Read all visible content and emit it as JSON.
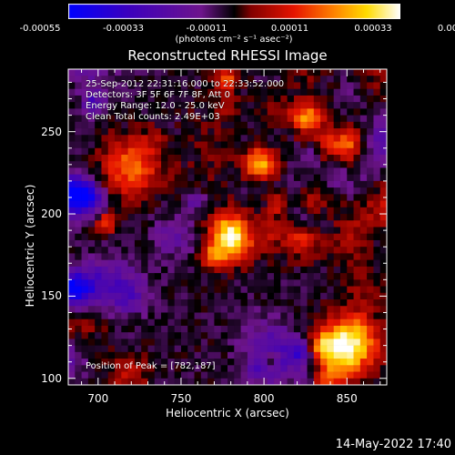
{
  "colorbar": {
    "labels": [
      "-0.00055",
      "-0.00033",
      "-0.00011",
      "0.00011",
      "0.00033",
      "0.00055"
    ],
    "units": "(photons cm⁻² s⁻¹ asec⁻²)",
    "range": [
      -0.00055,
      0.00055
    ]
  },
  "info": {
    "time_range": "25-Sep-2012 22:31:16.000 to 22:33:52.000",
    "detectors": "Detectors: 3F 5F 6F 7F 8F, Att 0",
    "energy": "Energy Range: 12.0 - 25.0 keV",
    "algorithm": "Clean     Total counts: 2.49E+03",
    "peak": "Position of Peak = [782,187]"
  },
  "timestamp": "14-May-2022 17:40",
  "chart_data": {
    "type": "heatmap",
    "title": "Reconstructed RHESSI Image",
    "xlabel": "Heliocentric X (arcsec)",
    "ylabel": "Heliocentric Y (arcsec)",
    "xlim": [
      682,
      874
    ],
    "ylim": [
      96,
      288
    ],
    "xticks": [
      "700",
      "750",
      "800",
      "850"
    ],
    "yticks": [
      "100",
      "150",
      "200",
      "250"
    ],
    "xtick_values": [
      700,
      750,
      800,
      850
    ],
    "ytick_values": [
      100,
      150,
      200,
      250
    ],
    "colormap": "IDL color table 5 (blue-purple-red-yellow-white)",
    "peak_position": [
      782,
      187
    ]
  }
}
